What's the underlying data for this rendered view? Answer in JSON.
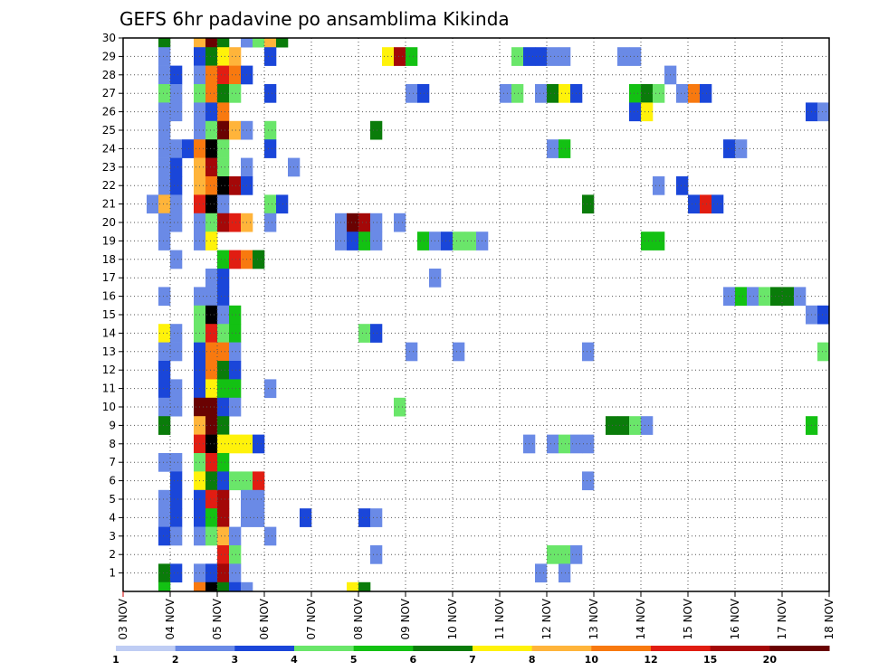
{
  "chart_data": {
    "type": "heatmap",
    "title": "GEFS 6hr padavine po ansamblima Kikinda",
    "xlabel": "",
    "ylabel": "",
    "x_ticks": [
      "03 NOV",
      "04 NOV",
      "05 NOV",
      "06 NOV",
      "07 NOV",
      "08 NOV",
      "09 NOV",
      "10 NOV",
      "11 NOV",
      "12 NOV",
      "13 NOV",
      "14 NOV",
      "15 NOV",
      "16 NOV",
      "17 NOV",
      "18 NOV"
    ],
    "y_ticks": [
      "1",
      "2",
      "3",
      "4",
      "5",
      "6",
      "7",
      "8",
      "9",
      "10",
      "11",
      "12",
      "13",
      "14",
      "15",
      "16",
      "17",
      "18",
      "19",
      "20",
      "21",
      "22",
      "23",
      "24",
      "25",
      "26",
      "27",
      "28",
      "29",
      "30"
    ],
    "xlim": [
      0,
      60
    ],
    "ylim": [
      0,
      30
    ],
    "x_unit": "6-hour steps from 03 NOV 00Z",
    "grid": true,
    "legend": "colorbar-bottom",
    "colorbar": {
      "levels": [
        "1",
        "2",
        "3",
        "4",
        "5",
        "6",
        "7",
        "8",
        "10",
        "12",
        "15",
        "20"
      ],
      "colors": [
        "#bfcdf4",
        "#6a8ae6",
        "#1a46d9",
        "#6ae66a",
        "#13c113",
        "#0a7c0a",
        "#fff20a",
        "#ffb43a",
        "#f8790f",
        "#e11d12",
        "#a40808",
        "#6a0202"
      ]
    },
    "cells": [
      [
        3.5,
        30,
        5
      ],
      [
        6.5,
        30,
        7
      ],
      [
        7.5,
        30,
        11
      ],
      [
        8.5,
        30,
        5
      ],
      [
        10.5,
        30,
        1
      ],
      [
        11.5,
        30,
        3
      ],
      [
        12.5,
        30,
        7
      ],
      [
        13.5,
        30,
        5
      ],
      [
        3.5,
        29,
        1
      ],
      [
        6.5,
        29,
        2
      ],
      [
        7.5,
        29,
        5
      ],
      [
        8.5,
        29,
        6
      ],
      [
        9.5,
        29,
        7
      ],
      [
        12.5,
        29,
        2
      ],
      [
        22.5,
        29,
        6
      ],
      [
        23.5,
        29,
        10
      ],
      [
        24.5,
        29,
        4
      ],
      [
        33.5,
        29,
        3
      ],
      [
        34.5,
        29,
        2
      ],
      [
        35.5,
        29,
        2
      ],
      [
        36.5,
        29,
        1
      ],
      [
        37.5,
        29,
        1
      ],
      [
        42.5,
        29,
        1
      ],
      [
        43.5,
        29,
        1
      ],
      [
        3.5,
        28,
        1
      ],
      [
        4.5,
        28,
        2
      ],
      [
        6.5,
        28,
        1
      ],
      [
        7.5,
        28,
        8
      ],
      [
        8.5,
        28,
        9
      ],
      [
        9.5,
        28,
        8
      ],
      [
        10.5,
        28,
        2
      ],
      [
        46.5,
        28,
        1
      ],
      [
        3.5,
        27,
        3
      ],
      [
        4.5,
        27,
        1
      ],
      [
        6.5,
        27,
        3
      ],
      [
        7.5,
        27,
        8
      ],
      [
        8.5,
        27,
        5
      ],
      [
        9.5,
        27,
        3
      ],
      [
        12.5,
        27,
        2
      ],
      [
        24.5,
        27,
        1
      ],
      [
        25.5,
        27,
        2
      ],
      [
        32.5,
        27,
        1
      ],
      [
        33.5,
        27,
        3
      ],
      [
        35.5,
        27,
        1
      ],
      [
        36.5,
        27,
        5
      ],
      [
        37.5,
        27,
        6
      ],
      [
        38.5,
        27,
        2
      ],
      [
        43.5,
        27,
        4
      ],
      [
        44.5,
        27,
        5
      ],
      [
        45.5,
        27,
        3
      ],
      [
        47.5,
        27,
        1
      ],
      [
        48.5,
        27,
        8
      ],
      [
        49.5,
        27,
        2
      ],
      [
        3.5,
        26,
        1
      ],
      [
        4.5,
        26,
        1
      ],
      [
        6.5,
        26,
        1
      ],
      [
        7.5,
        26,
        2
      ],
      [
        8.5,
        26,
        8
      ],
      [
        43.5,
        26,
        2
      ],
      [
        44.5,
        26,
        6
      ],
      [
        58.5,
        26,
        2
      ],
      [
        59.5,
        26,
        1
      ],
      [
        3.5,
        25,
        1
      ],
      [
        6.5,
        25,
        1
      ],
      [
        7.5,
        25,
        3
      ],
      [
        8.5,
        25,
        11
      ],
      [
        9.5,
        25,
        7
      ],
      [
        10.5,
        25,
        1
      ],
      [
        12.5,
        25,
        3
      ],
      [
        21.5,
        25,
        5
      ],
      [
        3.5,
        24,
        1
      ],
      [
        4.5,
        24,
        1
      ],
      [
        5.5,
        24,
        2
      ],
      [
        6.5,
        24,
        8
      ],
      [
        7.5,
        24,
        12
      ],
      [
        8.5,
        24,
        3
      ],
      [
        12.5,
        24,
        2
      ],
      [
        36.5,
        24,
        1
      ],
      [
        37.5,
        24,
        4
      ],
      [
        51.5,
        24,
        2
      ],
      [
        52.5,
        24,
        1
      ],
      [
        3.5,
        23,
        1
      ],
      [
        4.5,
        23,
        2
      ],
      [
        6.5,
        23,
        7
      ],
      [
        7.5,
        23,
        10
      ],
      [
        8.5,
        23,
        3
      ],
      [
        10.5,
        23,
        1
      ],
      [
        14.5,
        23,
        1
      ],
      [
        3.5,
        22,
        1
      ],
      [
        4.5,
        22,
        2
      ],
      [
        6.5,
        22,
        7
      ],
      [
        7.5,
        22,
        8
      ],
      [
        8.5,
        22,
        12
      ],
      [
        9.5,
        22,
        10
      ],
      [
        10.5,
        22,
        2
      ],
      [
        45.5,
        22,
        1
      ],
      [
        47.5,
        22,
        2
      ],
      [
        2.5,
        21,
        1
      ],
      [
        3.5,
        21,
        7
      ],
      [
        4.5,
        21,
        1
      ],
      [
        6.5,
        21,
        9
      ],
      [
        7.5,
        21,
        12
      ],
      [
        8.5,
        21,
        1
      ],
      [
        12.5,
        21,
        3
      ],
      [
        13.5,
        21,
        2
      ],
      [
        39.5,
        21,
        5
      ],
      [
        48.5,
        21,
        2
      ],
      [
        49.5,
        21,
        9
      ],
      [
        50.5,
        21,
        2
      ],
      [
        3.5,
        20,
        1
      ],
      [
        4.5,
        20,
        1
      ],
      [
        6.5,
        20,
        1
      ],
      [
        7.5,
        20,
        3
      ],
      [
        8.5,
        20,
        10
      ],
      [
        9.5,
        20,
        9
      ],
      [
        10.5,
        20,
        7
      ],
      [
        12.5,
        20,
        1
      ],
      [
        18.5,
        20,
        1
      ],
      [
        19.5,
        20,
        11
      ],
      [
        20.5,
        20,
        10
      ],
      [
        21.5,
        20,
        1
      ],
      [
        23.5,
        20,
        1
      ],
      [
        3.5,
        19,
        1
      ],
      [
        6.5,
        19,
        1
      ],
      [
        7.5,
        19,
        6
      ],
      [
        18.5,
        19,
        1
      ],
      [
        19.5,
        19,
        2
      ],
      [
        20.5,
        19,
        4
      ],
      [
        21.5,
        19,
        1
      ],
      [
        25.5,
        19,
        4
      ],
      [
        26.5,
        19,
        1
      ],
      [
        27.5,
        19,
        2
      ],
      [
        28.5,
        19,
        3
      ],
      [
        29.5,
        19,
        3
      ],
      [
        30.5,
        19,
        1
      ],
      [
        44.5,
        19,
        4
      ],
      [
        45.5,
        19,
        4
      ],
      [
        4.5,
        18,
        1
      ],
      [
        8.5,
        18,
        4
      ],
      [
        9.5,
        18,
        9
      ],
      [
        10.5,
        18,
        8
      ],
      [
        11.5,
        18,
        5
      ],
      [
        7.5,
        17,
        1
      ],
      [
        8.5,
        17,
        2
      ],
      [
        26.5,
        17,
        1
      ],
      [
        3.5,
        16,
        1
      ],
      [
        6.5,
        16,
        1
      ],
      [
        7.5,
        16,
        1
      ],
      [
        8.5,
        16,
        2
      ],
      [
        51.5,
        16,
        1
      ],
      [
        52.5,
        16,
        4
      ],
      [
        53.5,
        16,
        1
      ],
      [
        54.5,
        16,
        3
      ],
      [
        55.5,
        16,
        5
      ],
      [
        56.5,
        16,
        5
      ],
      [
        57.5,
        16,
        1
      ],
      [
        6.5,
        15,
        3
      ],
      [
        7.5,
        15,
        12
      ],
      [
        8.5,
        15,
        1
      ],
      [
        9.5,
        15,
        4
      ],
      [
        58.5,
        15,
        1
      ],
      [
        59.5,
        15,
        2
      ],
      [
        3.5,
        14,
        6
      ],
      [
        4.5,
        14,
        1
      ],
      [
        6.5,
        14,
        3
      ],
      [
        7.5,
        14,
        9
      ],
      [
        8.5,
        14,
        3
      ],
      [
        9.5,
        14,
        4
      ],
      [
        20.5,
        14,
        3
      ],
      [
        21.5,
        14,
        2
      ],
      [
        3.5,
        13,
        1
      ],
      [
        4.5,
        13,
        1
      ],
      [
        6.5,
        13,
        2
      ],
      [
        7.5,
        13,
        8
      ],
      [
        8.5,
        13,
        8
      ],
      [
        9.5,
        13,
        1
      ],
      [
        24.5,
        13,
        1
      ],
      [
        28.5,
        13,
        1
      ],
      [
        39.5,
        13,
        1
      ],
      [
        59.5,
        13,
        3
      ],
      [
        3.5,
        12,
        2
      ],
      [
        6.5,
        12,
        2
      ],
      [
        7.5,
        12,
        8
      ],
      [
        8.5,
        12,
        5
      ],
      [
        9.5,
        12,
        2
      ],
      [
        3.5,
        11,
        2
      ],
      [
        4.5,
        11,
        1
      ],
      [
        6.5,
        11,
        2
      ],
      [
        7.5,
        11,
        6
      ],
      [
        8.5,
        11,
        4
      ],
      [
        9.5,
        11,
        4
      ],
      [
        12.5,
        11,
        1
      ],
      [
        3.5,
        10,
        1
      ],
      [
        4.5,
        10,
        1
      ],
      [
        6.5,
        10,
        11
      ],
      [
        7.5,
        10,
        11
      ],
      [
        8.5,
        10,
        2
      ],
      [
        9.5,
        10,
        1
      ],
      [
        23.5,
        10,
        3
      ],
      [
        3.5,
        9,
        5
      ],
      [
        6.5,
        9,
        7
      ],
      [
        7.5,
        9,
        11
      ],
      [
        8.5,
        9,
        5
      ],
      [
        41.5,
        9,
        5
      ],
      [
        42.5,
        9,
        5
      ],
      [
        43.5,
        9,
        3
      ],
      [
        44.5,
        9,
        1
      ],
      [
        58.5,
        9,
        4
      ],
      [
        6.5,
        8,
        9
      ],
      [
        7.5,
        8,
        12
      ],
      [
        8.5,
        8,
        6
      ],
      [
        9.5,
        8,
        6
      ],
      [
        10.5,
        8,
        6
      ],
      [
        11.5,
        8,
        2
      ],
      [
        34.5,
        8,
        1
      ],
      [
        36.5,
        8,
        1
      ],
      [
        37.5,
        8,
        3
      ],
      [
        38.5,
        8,
        1
      ],
      [
        39.5,
        8,
        1
      ],
      [
        3.5,
        7,
        1
      ],
      [
        4.5,
        7,
        1
      ],
      [
        6.5,
        7,
        3
      ],
      [
        7.5,
        7,
        9
      ],
      [
        8.5,
        7,
        4
      ],
      [
        4.5,
        6,
        2
      ],
      [
        6.5,
        6,
        6
      ],
      [
        7.5,
        6,
        5
      ],
      [
        8.5,
        6,
        2
      ],
      [
        9.5,
        6,
        3
      ],
      [
        10.5,
        6,
        3
      ],
      [
        11.5,
        6,
        9
      ],
      [
        39.5,
        6,
        1
      ],
      [
        3.5,
        5,
        1
      ],
      [
        4.5,
        5,
        2
      ],
      [
        6.5,
        5,
        2
      ],
      [
        7.5,
        5,
        9
      ],
      [
        8.5,
        5,
        10
      ],
      [
        10.5,
        5,
        1
      ],
      [
        11.5,
        5,
        1
      ],
      [
        3.5,
        4,
        1
      ],
      [
        4.5,
        4,
        2
      ],
      [
        6.5,
        4,
        2
      ],
      [
        7.5,
        4,
        4
      ],
      [
        8.5,
        4,
        10
      ],
      [
        10.5,
        4,
        1
      ],
      [
        11.5,
        4,
        1
      ],
      [
        15.5,
        4,
        2
      ],
      [
        20.5,
        4,
        2
      ],
      [
        21.5,
        4,
        1
      ],
      [
        3.5,
        3,
        2
      ],
      [
        4.5,
        3,
        1
      ],
      [
        6.5,
        3,
        1
      ],
      [
        7.5,
        3,
        3
      ],
      [
        8.5,
        3,
        7
      ],
      [
        9.5,
        3,
        1
      ],
      [
        12.5,
        3,
        1
      ],
      [
        8.5,
        2,
        9
      ],
      [
        9.5,
        2,
        3
      ],
      [
        21.5,
        2,
        1
      ],
      [
        36.5,
        2,
        3
      ],
      [
        37.5,
        2,
        3
      ],
      [
        38.5,
        2,
        1
      ],
      [
        3.5,
        1,
        5
      ],
      [
        4.5,
        1,
        2
      ],
      [
        6.5,
        1,
        1
      ],
      [
        7.5,
        1,
        2
      ],
      [
        8.5,
        1,
        10
      ],
      [
        9.5,
        1,
        1
      ],
      [
        35.5,
        1,
        1
      ],
      [
        37.5,
        1,
        1
      ],
      [
        3.5,
        0,
        4
      ],
      [
        6.5,
        0,
        8
      ],
      [
        7.5,
        0,
        12
      ],
      [
        8.5,
        0,
        5
      ],
      [
        9.5,
        0,
        2
      ],
      [
        10.5,
        0,
        1
      ],
      [
        19.5,
        0,
        6
      ],
      [
        20.5,
        0,
        5
      ],
      [
        3.5,
        -1,
        2
      ],
      [
        4.5,
        -1,
        1
      ],
      [
        6.5,
        -1,
        2
      ],
      [
        7.5,
        -1,
        2
      ],
      [
        8.5,
        -1,
        3
      ],
      [
        9.5,
        -1,
        4
      ],
      [
        23.5,
        -1,
        1
      ],
      [
        38.5,
        -1,
        5
      ],
      [
        39.5,
        -1,
        1
      ],
      [
        46.5,
        -1,
        1
      ],
      [
        47.5,
        -1,
        1
      ],
      [
        49.5,
        -1,
        1
      ],
      [
        50.5,
        -1,
        2
      ],
      [
        51.5,
        -1,
        6
      ],
      [
        52.5,
        -1,
        1
      ]
    ]
  }
}
